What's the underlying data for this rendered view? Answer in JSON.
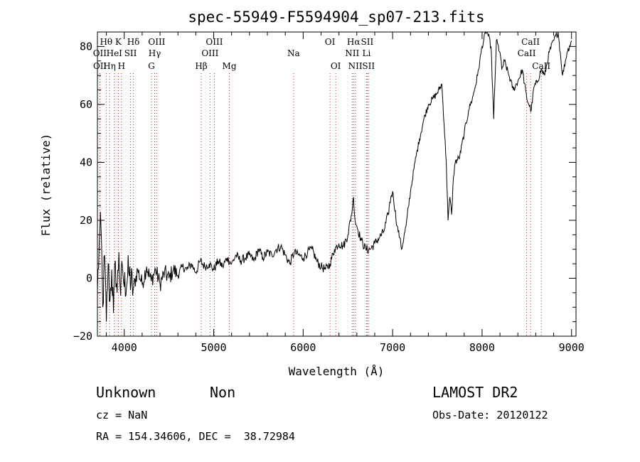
{
  "chart_data": {
    "type": "line",
    "title": "spec-55949-F5594904_sp07-213.fits",
    "xlabel": "Wavelength (Å)",
    "ylabel": "Flux (relative)",
    "xlim": [
      3700,
      9050
    ],
    "ylim": [
      -20,
      85
    ],
    "x_ticks": [
      4000,
      5000,
      6000,
      7000,
      8000,
      9000
    ],
    "y_ticks": [
      -20,
      0,
      20,
      40,
      60,
      80
    ],
    "grid": false,
    "series": [
      {
        "color": "#000000",
        "x": [
          3700,
          3720,
          3740,
          3760,
          3780,
          3800,
          3820,
          3840,
          3860,
          3880,
          3900,
          3920,
          3940,
          3960,
          3980,
          4000,
          4050,
          4100,
          4150,
          4200,
          4250,
          4300,
          4350,
          4400,
          4450,
          4500,
          4550,
          4600,
          4650,
          4700,
          4750,
          4800,
          4850,
          4900,
          4950,
          5000,
          5050,
          5100,
          5150,
          5200,
          5250,
          5300,
          5350,
          5400,
          5450,
          5500,
          5550,
          5600,
          5650,
          5700,
          5750,
          5800,
          5850,
          5900,
          5950,
          6000,
          6050,
          6100,
          6150,
          6200,
          6250,
          6300,
          6350,
          6400,
          6450,
          6500,
          6550,
          6563,
          6580,
          6600,
          6650,
          6700,
          6750,
          6800,
          6850,
          6900,
          6950,
          6980,
          7000,
          7050,
          7080,
          7100,
          7150,
          7200,
          7250,
          7300,
          7350,
          7400,
          7450,
          7500,
          7550,
          7600,
          7620,
          7640,
          7660,
          7680,
          7700,
          7750,
          7800,
          7850,
          7900,
          7950,
          8000,
          8050,
          8100,
          8130,
          8160,
          8200,
          8220,
          8250,
          8300,
          8350,
          8400,
          8450,
          8500,
          8550,
          8580,
          8620,
          8660,
          8700,
          8750,
          8800,
          8850,
          8880,
          8900,
          8950,
          9000
        ],
        "y": [
          -5,
          12,
          18,
          -10,
          8,
          -15,
          5,
          -8,
          3,
          -12,
          6,
          -5,
          9,
          -6,
          4,
          -3,
          2,
          -4,
          3,
          -2,
          4,
          -1,
          3,
          -2,
          2,
          0,
          3,
          1,
          4,
          3,
          5,
          2,
          6,
          4,
          5,
          3,
          6,
          4,
          7,
          5,
          8,
          6,
          7,
          8,
          6,
          10,
          7,
          9,
          8,
          10,
          11,
          8,
          5,
          9,
          8,
          7,
          9,
          10,
          6,
          4,
          3,
          5,
          10,
          12,
          11,
          15,
          24,
          28,
          20,
          18,
          13,
          10,
          10,
          12,
          14,
          16,
          22,
          28,
          30,
          18,
          14,
          10,
          18,
          30,
          40,
          48,
          55,
          60,
          62,
          64,
          67,
          40,
          20,
          28,
          22,
          35,
          40,
          42,
          50,
          58,
          63,
          70,
          80,
          86,
          80,
          55,
          82,
          78,
          72,
          75,
          70,
          65,
          68,
          72,
          62,
          58,
          66,
          68,
          72,
          70,
          78,
          82,
          85,
          76,
          70,
          78,
          82
        ]
      }
    ],
    "line_markers": [
      {
        "label": "Hθ",
        "x": 3798,
        "row": 0
      },
      {
        "label": "K",
        "x": 3934,
        "row": 0
      },
      {
        "label": "Hδ",
        "x": 4102,
        "row": 0
      },
      {
        "label": "OII",
        "x": 3727,
        "row": 1
      },
      {
        "label": "HeI",
        "x": 3889,
        "row": 1
      },
      {
        "label": "SII",
        "x": 4070,
        "row": 1
      },
      {
        "label": "OII",
        "x": 3729,
        "row": 2
      },
      {
        "label": "Hη",
        "x": 3835,
        "row": 2
      },
      {
        "label": "H",
        "x": 3969,
        "row": 2
      },
      {
        "label": "OIII",
        "x": 4363,
        "row": 0
      },
      {
        "label": "Hγ",
        "x": 4340,
        "row": 1
      },
      {
        "label": "G",
        "x": 4305,
        "row": 2
      },
      {
        "label": "OIII",
        "x": 5007,
        "row": 0
      },
      {
        "label": "OIII",
        "x": 4959,
        "row": 1
      },
      {
        "label": "Hβ",
        "x": 4861,
        "row": 2
      },
      {
        "label": "Mg",
        "x": 5175,
        "row": 2
      },
      {
        "label": "Na",
        "x": 5893,
        "row": 1
      },
      {
        "label": "OI",
        "x": 6300,
        "row": 0
      },
      {
        "label": "OI",
        "x": 6364,
        "row": 2
      },
      {
        "label": "Hα",
        "x": 6563,
        "row": 0
      },
      {
        "label": "SII",
        "x": 6716,
        "row": 0
      },
      {
        "label": "NII",
        "x": 6548,
        "row": 1
      },
      {
        "label": "Li",
        "x": 6708,
        "row": 1
      },
      {
        "label": "NII",
        "x": 6583,
        "row": 2
      },
      {
        "label": "SII",
        "x": 6731,
        "row": 2
      },
      {
        "label": "CaII",
        "x": 8542,
        "row": 0
      },
      {
        "label": "CaII",
        "x": 8498,
        "row": 1
      },
      {
        "label": "CaII",
        "x": 8662,
        "row": 2
      }
    ]
  },
  "info": {
    "class": "Unknown",
    "subclass": "Non",
    "survey": "LAMOST DR2",
    "cz": "cz = NaN",
    "obs_date": "Obs-Date: 20120122",
    "coords": "RA = 154.34606, DEC =  38.72984"
  }
}
